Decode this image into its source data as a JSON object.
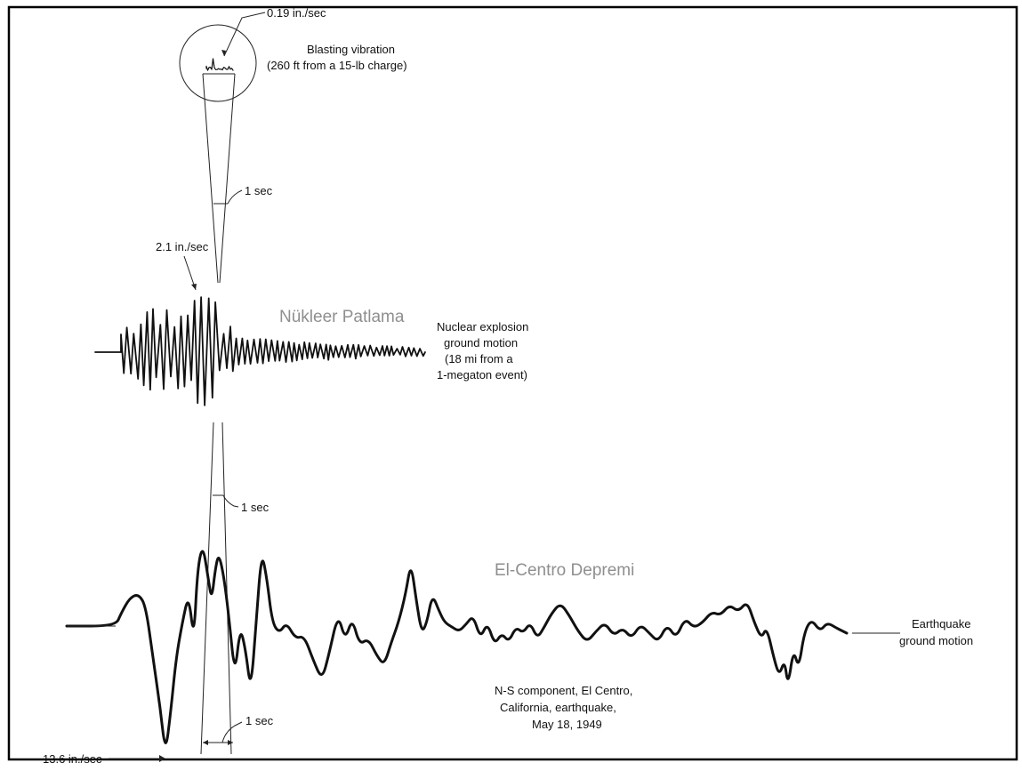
{
  "blasting": {
    "peak": "0.19 in./sec",
    "label_line1": "Blasting vibration",
    "label_line2": "(260 ft from a 15-lb charge)",
    "timescale": "1 sec"
  },
  "nuclear": {
    "peak": "2.1 in./sec",
    "title": "Nükleer Patlama",
    "label_line1": "Nuclear explosion",
    "label_line2": "ground motion",
    "label_line3": "(18 mi from a",
    "label_line4": "1-megaton event)",
    "timescale": "1 sec"
  },
  "earthquake": {
    "peak": "13.6 in./sec",
    "title": "El-Centro Depremi",
    "label_line1": "Earthquake",
    "label_line2": "ground motion",
    "note_line1": "N-S component, El Centro,",
    "note_line2": "California, earthquake,",
    "note_line3": "May 18, 1949",
    "timescale": "1 sec"
  },
  "colors": {
    "ink": "#111111",
    "title_gray": "#8f8f8f",
    "frame": "#000000"
  }
}
